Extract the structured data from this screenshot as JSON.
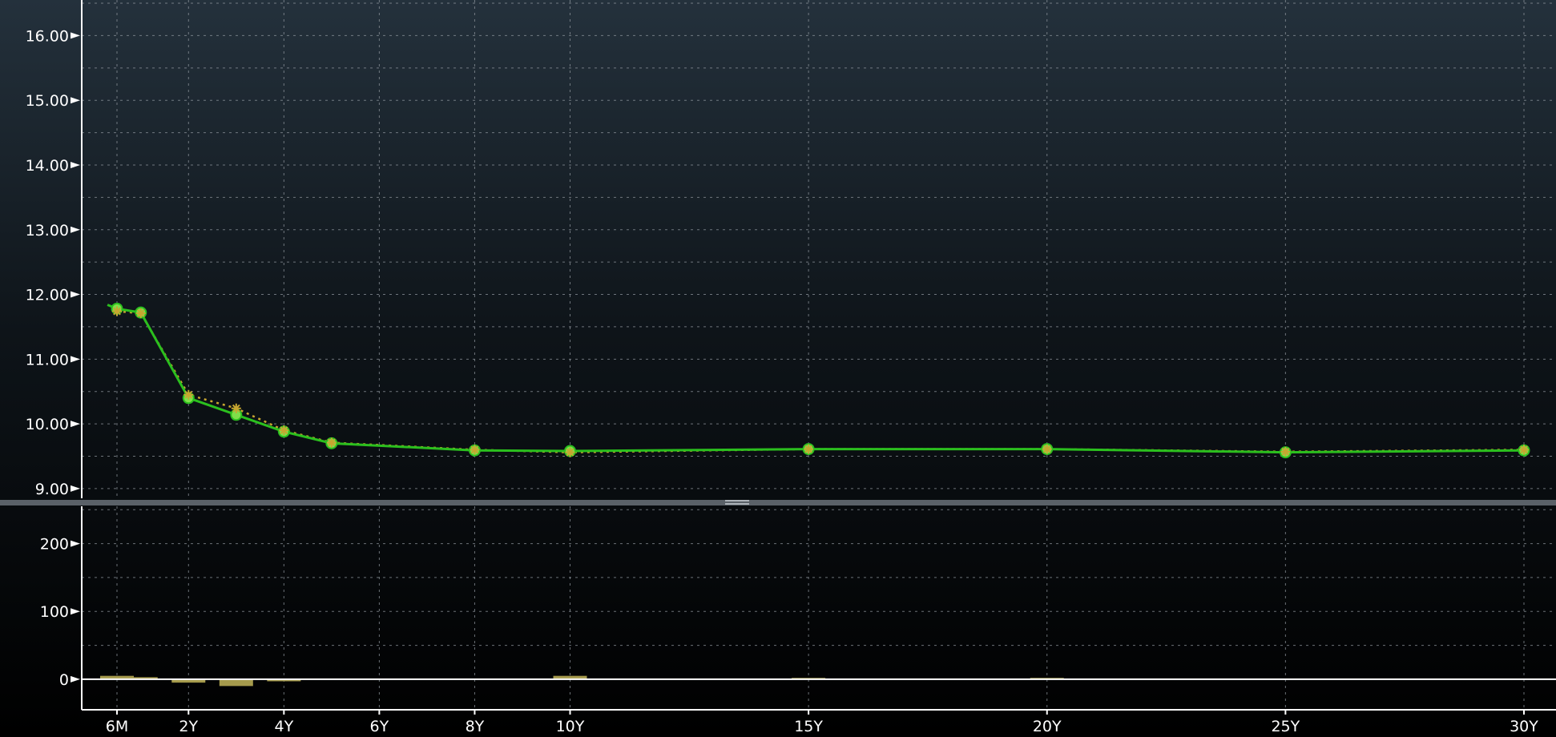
{
  "colors": {
    "background_top": "#24313c",
    "background_bottom": "#000000",
    "grid": "#8e959c",
    "axis": "#ffffff",
    "current_curve": "#2bbf1e",
    "current_marker": "#7fe04a",
    "prior_curve": "#c7a630",
    "change_bar": "#a59a4c"
  },
  "chart_data": [
    {
      "id": "yield-curve",
      "type": "line",
      "x_axis_type": "tenor_years",
      "title": "",
      "xlabel": "",
      "ylabel": "",
      "ylim": [
        8.85,
        16.55
      ],
      "y_ticks": [
        "9.00",
        "10.00",
        "11.00",
        "12.00",
        "13.00",
        "14.00",
        "15.00",
        "16.00"
      ],
      "y_tick_values": [
        9,
        10,
        11,
        12,
        13,
        14,
        15,
        16
      ],
      "grid": true,
      "series": [
        {
          "style": "solid-circles",
          "x": [
            0.5,
            1,
            2,
            3,
            4,
            5,
            8,
            10,
            15,
            20,
            25,
            30
          ],
          "y": [
            11.78,
            11.72,
            10.4,
            10.14,
            9.88,
            9.7,
            9.59,
            9.58,
            9.61,
            9.61,
            9.56,
            9.59
          ]
        },
        {
          "style": "dotted-stars",
          "x": [
            0.5,
            1,
            2,
            3,
            4,
            5,
            8,
            10,
            15,
            20,
            25,
            30
          ],
          "y": [
            11.74,
            11.71,
            10.45,
            10.24,
            9.9,
            9.71,
            9.6,
            9.56,
            9.61,
            9.61,
            9.57,
            9.6
          ]
        }
      ],
      "leading_segment": {
        "x": [
          0.3,
          0.5
        ],
        "y": [
          11.84,
          11.78
        ]
      }
    },
    {
      "id": "change-bars",
      "type": "bar",
      "x_axis_type": "tenor_years",
      "title": "",
      "xlabel": "",
      "ylabel": "",
      "ylim": [
        -45,
        255
      ],
      "y_ticks": [
        "0",
        "100",
        "200"
      ],
      "y_tick_values": [
        0,
        100,
        200
      ],
      "grid": true,
      "x": [
        0.5,
        1,
        2,
        3,
        4,
        10,
        15,
        20
      ],
      "values": [
        5,
        3,
        -5,
        -10,
        -3,
        5,
        2,
        2
      ]
    }
  ],
  "x_axis": {
    "tick_labels": [
      "6M",
      "2Y",
      "4Y",
      "6Y",
      "8Y",
      "10Y",
      "15Y",
      "20Y",
      "25Y",
      "30Y"
    ],
    "tick_values": [
      0.5,
      2,
      4,
      6,
      8,
      10,
      15,
      20,
      25,
      30
    ]
  }
}
